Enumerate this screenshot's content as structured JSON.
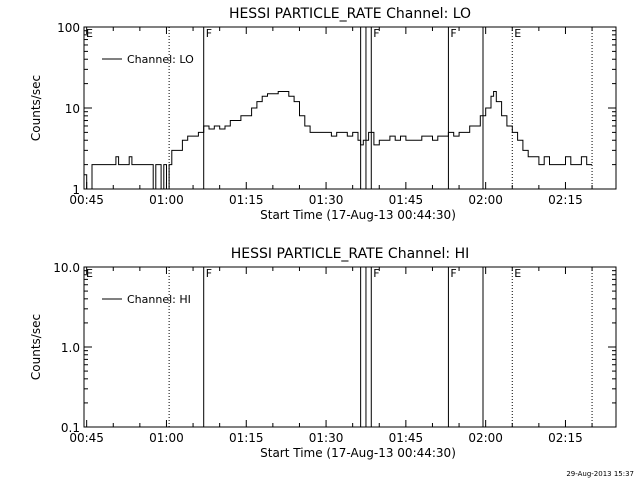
{
  "chart_data": [
    {
      "type": "line",
      "title": "HESSI PARTICLE_RATE Channel: LO",
      "xlabel": "Start Time (17-Aug-13 00:44:30)",
      "ylabel": "Counts/sec",
      "xlim": [
        "00:44:30",
        "02:24:30"
      ],
      "ylim": [
        1,
        100
      ],
      "yscale": "log",
      "xticks": [
        "00:45",
        "01:00",
        "01:15",
        "01:30",
        "01:45",
        "02:00",
        "02:15"
      ],
      "yticks": [
        "1",
        "10",
        "100"
      ],
      "legend": {
        "placement": "top-left",
        "entries": [
          "Channel: LO"
        ]
      },
      "markers": [
        {
          "label": "E",
          "time": "00:44:30",
          "style": "dotted"
        },
        {
          "label": "",
          "time": "01:00:30",
          "style": "dotted"
        },
        {
          "label": "F",
          "time": "01:07:00",
          "style": "solid"
        },
        {
          "label": "",
          "time": "01:36:30",
          "style": "solid"
        },
        {
          "label": "",
          "time": "01:37:30",
          "style": "solid"
        },
        {
          "label": "F",
          "time": "01:38:30",
          "style": "solid"
        },
        {
          "label": "F",
          "time": "01:53:00",
          "style": "solid"
        },
        {
          "label": "",
          "time": "01:59:30",
          "style": "solid"
        },
        {
          "label": "E",
          "time": "02:05:00",
          "style": "dotted"
        },
        {
          "label": "",
          "time": "02:20:00",
          "style": "dotted"
        }
      ],
      "series": [
        {
          "name": "Channel: LO",
          "x": [
            "00:44:30",
            "00:45:00",
            "00:46:00",
            "00:47:00",
            "00:48:00",
            "00:49:00",
            "00:50:00",
            "00:50:30",
            "00:51:00",
            "00:52:00",
            "00:53:00",
            "00:53:30",
            "00:54:00",
            "00:55:00",
            "00:56:00",
            "00:57:00",
            "00:57:30",
            "00:58:00",
            "00:59:00",
            "00:59:30",
            "01:00:00",
            "01:00:30",
            "01:01:00",
            "01:02:00",
            "01:03:00",
            "01:04:00",
            "01:05:00",
            "01:06:00",
            "01:07:00",
            "01:08:00",
            "01:09:00",
            "01:10:00",
            "01:11:00",
            "01:12:00",
            "01:13:00",
            "01:14:00",
            "01:15:00",
            "01:16:00",
            "01:17:00",
            "01:18:00",
            "01:19:00",
            "01:20:00",
            "01:21:00",
            "01:22:00",
            "01:23:00",
            "01:24:00",
            "01:25:00",
            "01:26:00",
            "01:27:00",
            "01:28:00",
            "01:29:00",
            "01:30:00",
            "01:31:00",
            "01:32:00",
            "01:33:00",
            "01:34:00",
            "01:35:00",
            "01:36:00",
            "01:36:30",
            "01:37:00",
            "01:38:00",
            "01:39:00",
            "01:40:00",
            "01:41:00",
            "01:42:00",
            "01:43:00",
            "01:44:00",
            "01:45:00",
            "01:46:00",
            "01:47:00",
            "01:48:00",
            "01:49:00",
            "01:50:00",
            "01:51:00",
            "01:52:00",
            "01:53:00",
            "01:54:00",
            "01:55:00",
            "01:56:00",
            "01:57:00",
            "01:58:00",
            "01:59:00",
            "02:00:00",
            "02:01:00",
            "02:01:30",
            "02:02:00",
            "02:03:00",
            "02:04:00",
            "02:05:00",
            "02:06:00",
            "02:07:00",
            "02:08:00",
            "02:09:00",
            "02:10:00",
            "02:11:00",
            "02:12:00",
            "02:13:00",
            "02:14:00",
            "02:15:00",
            "02:16:00",
            "02:17:00",
            "02:18:00",
            "02:19:00"
          ],
          "values": [
            1.5,
            1.0,
            2.0,
            2.0,
            2.0,
            2.0,
            2.0,
            2.5,
            2.0,
            2.0,
            2.5,
            2.0,
            2.0,
            2.0,
            2.0,
            2.0,
            1.0,
            2.0,
            1.0,
            2.0,
            1.0,
            2.0,
            3.0,
            3.0,
            4.0,
            4.5,
            4.5,
            5.0,
            6.0,
            5.5,
            6.0,
            5.5,
            6.0,
            7.0,
            7.0,
            8.0,
            8.0,
            10.0,
            12.0,
            14.0,
            15.0,
            15.0,
            16.0,
            16.0,
            14.0,
            12.0,
            8.0,
            6.0,
            5.0,
            5.0,
            5.0,
            5.0,
            4.5,
            5.0,
            5.0,
            4.5,
            5.0,
            4.0,
            3.5,
            4.0,
            5.0,
            3.5,
            4.0,
            4.0,
            4.5,
            4.0,
            4.5,
            4.0,
            4.0,
            4.0,
            4.5,
            4.5,
            4.0,
            4.5,
            4.5,
            5.0,
            4.5,
            5.0,
            5.0,
            6.0,
            6.0,
            8.0,
            10.0,
            14.0,
            16.0,
            12.0,
            8.0,
            6.0,
            5.0,
            4.0,
            3.0,
            2.5,
            2.5,
            2.0,
            2.5,
            2.0,
            2.0,
            2.0,
            2.5,
            2.0,
            2.0,
            2.5,
            2.0
          ]
        }
      ]
    },
    {
      "type": "line",
      "title": "HESSI PARTICLE_RATE Channel: HI",
      "xlabel": "Start Time (17-Aug-13 00:44:30)",
      "ylabel": "Counts/sec",
      "xlim": [
        "00:44:30",
        "02:24:30"
      ],
      "ylim": [
        0.1,
        10.0
      ],
      "yscale": "log",
      "xticks": [
        "00:45",
        "01:00",
        "01:15",
        "01:30",
        "01:45",
        "02:00",
        "02:15"
      ],
      "yticks": [
        "0.1",
        "1.0",
        "10.0"
      ],
      "legend": {
        "placement": "top-left",
        "entries": [
          "Channel: HI"
        ]
      },
      "markers": [
        {
          "label": "E",
          "time": "00:44:30",
          "style": "dotted"
        },
        {
          "label": "",
          "time": "01:00:30",
          "style": "dotted"
        },
        {
          "label": "F",
          "time": "01:07:00",
          "style": "solid"
        },
        {
          "label": "",
          "time": "01:36:30",
          "style": "solid"
        },
        {
          "label": "",
          "time": "01:37:30",
          "style": "solid"
        },
        {
          "label": "F",
          "time": "01:38:30",
          "style": "solid"
        },
        {
          "label": "F",
          "time": "01:53:00",
          "style": "solid"
        },
        {
          "label": "",
          "time": "01:59:30",
          "style": "solid"
        },
        {
          "label": "E",
          "time": "02:05:00",
          "style": "dotted"
        },
        {
          "label": "",
          "time": "02:20:00",
          "style": "dotted"
        }
      ],
      "series": [
        {
          "name": "Channel: HI",
          "x": [],
          "values": []
        }
      ]
    }
  ],
  "footer": {
    "timestamp": "29-Aug-2013 15:37"
  }
}
